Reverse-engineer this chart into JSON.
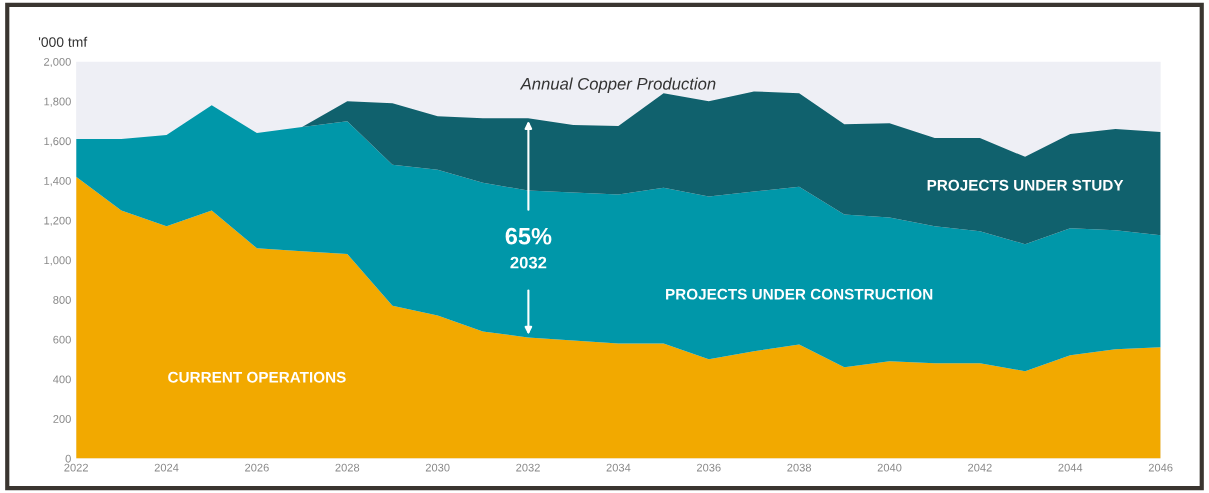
{
  "chart_data": {
    "type": "area",
    "stacked": true,
    "title": "Annual Copper Production",
    "ylabel": "'000 tmf",
    "x": [
      2022,
      2023,
      2024,
      2025,
      2026,
      2027,
      2028,
      2029,
      2030,
      2031,
      2032,
      2033,
      2034,
      2035,
      2036,
      2037,
      2038,
      2039,
      2040,
      2041,
      2042,
      2043,
      2044,
      2045,
      2046
    ],
    "series": [
      {
        "name": "CURRENT OPERATIONS",
        "color": "#f2a900",
        "values": [
          1420,
          1250,
          1170,
          1250,
          1060,
          1045,
          1030,
          770,
          720,
          640,
          610,
          595,
          580,
          580,
          500,
          540,
          575,
          460,
          490,
          480,
          480,
          440,
          520,
          550,
          560
        ]
      },
      {
        "name": "PROJECTS UNDER CONSTRUCTION",
        "color": "#0097a9",
        "values": [
          190,
          360,
          460,
          530,
          580,
          625,
          670,
          710,
          735,
          750,
          740,
          745,
          750,
          785,
          820,
          805,
          795,
          770,
          725,
          690,
          665,
          640,
          640,
          600,
          565
        ]
      },
      {
        "name": "PROJECTS UNDER STUDY",
        "color": "#10616d",
        "values": [
          0,
          0,
          0,
          0,
          0,
          0,
          100,
          310,
          270,
          325,
          365,
          340,
          345,
          475,
          480,
          505,
          470,
          455,
          475,
          445,
          470,
          440,
          475,
          510,
          520
        ]
      }
    ],
    "xlim": [
      2022,
      2046
    ],
    "xticks": [
      2022,
      2024,
      2026,
      2028,
      2030,
      2032,
      2034,
      2036,
      2038,
      2040,
      2042,
      2044,
      2046
    ],
    "ylim": [
      0,
      2000
    ],
    "yticks": [
      0,
      200,
      400,
      600,
      800,
      {
        "value": 1000,
        "label": "1,000"
      },
      {
        "value": 1200,
        "label": "1,200"
      },
      {
        "value": 1400,
        "label": "1,400"
      },
      {
        "value": 1600,
        "label": "1,600"
      },
      {
        "value": 1800,
        "label": "1,800"
      },
      {
        "value": 2000,
        "label": "2,000"
      }
    ],
    "annotations": [
      "65%",
      "2032"
    ],
    "grid": false,
    "legend": false
  }
}
